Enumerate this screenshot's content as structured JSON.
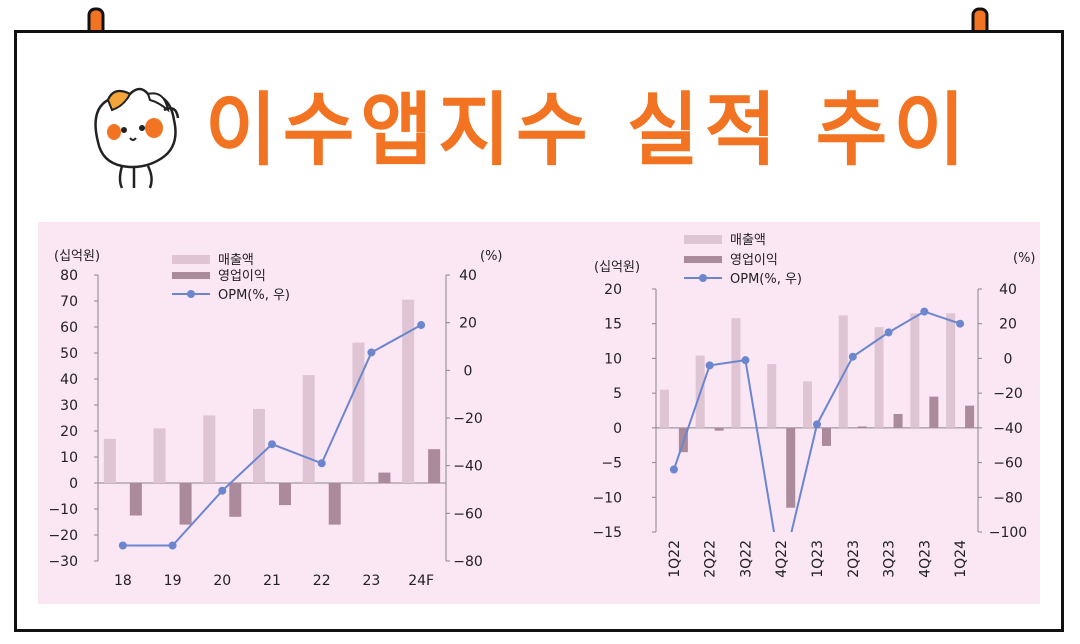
{
  "title": "이수앱지수 실적 추이",
  "colors": {
    "accent": "#f27321",
    "panel_bg": "#fbe6f4",
    "sales": "#dfc5d3",
    "op": "#ab8a9b",
    "opm": "#6b86cf"
  },
  "chart_data": [
    {
      "type": "bar",
      "categories": [
        "18",
        "19",
        "20",
        "21",
        "22",
        "23",
        "24F"
      ],
      "y_left_unit": "(십억원)",
      "y_right_unit": "(%)",
      "ylim": [
        -30,
        80
      ],
      "y2lim": [
        -80,
        40
      ],
      "yticks": [
        "80",
        "70",
        "60",
        "50",
        "40",
        "30",
        "20",
        "10",
        "0",
        "−10",
        "−20",
        "−30"
      ],
      "y2ticks": [
        "40",
        "20",
        "0",
        "−20",
        "−40",
        "−60",
        "−80"
      ],
      "legend": [
        "매출액",
        "영업이익",
        "OPM(%, 우)"
      ],
      "series": [
        {
          "name": "매출액",
          "type": "bar",
          "values": [
            17,
            21,
            26,
            28.5,
            41.5,
            54,
            70.5
          ]
        },
        {
          "name": "영업이익",
          "type": "bar",
          "values": [
            -12.5,
            -16,
            -13,
            -8.5,
            -16,
            4,
            13
          ]
        },
        {
          "name": "OPM(%, 우)",
          "type": "line",
          "axis": "right",
          "values": [
            -73.5,
            -73.5,
            -50.5,
            -31,
            -39,
            7.5,
            19
          ]
        }
      ]
    },
    {
      "type": "bar",
      "categories": [
        "1Q22",
        "2Q22",
        "3Q22",
        "4Q22",
        "1Q23",
        "2Q23",
        "3Q23",
        "4Q23",
        "1Q24"
      ],
      "y_left_unit": "(십억원)",
      "y_right_unit": "(%)",
      "ylim": [
        -15,
        20
      ],
      "y2lim": [
        -100,
        40
      ],
      "yticks": [
        "20",
        "15",
        "10",
        "5",
        "0",
        "−5",
        "−10",
        "−15"
      ],
      "y2ticks": [
        "40",
        "20",
        "0",
        "−20",
        "−40",
        "−60",
        "−80",
        "−100"
      ],
      "legend": [
        "매출액",
        "영업이익",
        "OPM(%, 우)"
      ],
      "series": [
        {
          "name": "매출액",
          "type": "bar",
          "values": [
            5.5,
            10.4,
            15.8,
            9.2,
            6.7,
            16.2,
            14.5,
            16.5,
            16.5
          ]
        },
        {
          "name": "영업이익",
          "type": "bar",
          "values": [
            -3.5,
            -0.4,
            0,
            -11.5,
            -2.6,
            0.2,
            2.0,
            4.5,
            3.2
          ]
        },
        {
          "name": "OPM(%, 우)",
          "type": "line",
          "axis": "right",
          "values": [
            -64,
            -4,
            -1,
            -125,
            -38,
            1,
            15,
            27,
            20
          ]
        }
      ]
    }
  ]
}
